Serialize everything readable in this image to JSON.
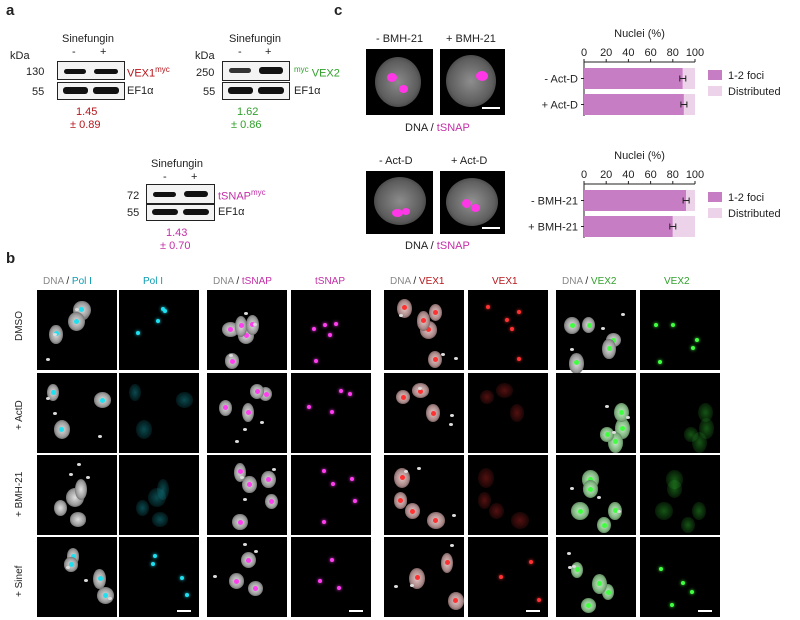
{
  "panels": {
    "a": "a",
    "b": "b",
    "c": "c"
  },
  "panel_a": {
    "kda": "kDa",
    "treatment": "Sinefungin",
    "minus": "-",
    "plus": "+",
    "loading": "EF1α",
    "mw55": "55",
    "blot1": {
      "mw": "130",
      "target": "VEX1",
      "tag": "myc",
      "ratio": "1.45",
      "sd": "± 0.89"
    },
    "blot2": {
      "mw": "250",
      "target": "VEX2",
      "tag": "myc",
      "ratio": "1.62",
      "sd": "± 0.86"
    },
    "blot3": {
      "mw": "72",
      "target": "tSNAP",
      "tag": "myc",
      "ratio": "1.43",
      "sd": "± 0.70"
    }
  },
  "panel_b": {
    "columns": [
      {
        "pre": "DNA",
        "sep": " /",
        "post": "Pol I"
      },
      {
        "post": "Pol I"
      },
      {
        "pre": "DNA",
        "sep": " /",
        "post": "tSNAP"
      },
      {
        "post": "tSNAP"
      },
      {
        "pre": "DNA",
        "sep": " /",
        "post": "VEX1"
      },
      {
        "post": "VEX1"
      },
      {
        "pre": "DNA",
        "sep": " /",
        "post": "VEX2"
      },
      {
        "post": "VEX2"
      }
    ],
    "rows": [
      "DMSO",
      "+ ActD",
      "+ BMH-21",
      "+ Sinef"
    ]
  },
  "panel_c": {
    "top_images": [
      "- BMH-21",
      "+ BMH-21"
    ],
    "bottom_images": [
      "- Act-D",
      "+ Act-D"
    ],
    "caption_dna": "DNA",
    "caption_sep": " / ",
    "caption_tsnap": "tSNAP",
    "colors": {
      "foci": "#c77dc3",
      "distributed": "#ecd3ea"
    }
  },
  "chart_data": [
    {
      "type": "bar",
      "orientation": "horizontal",
      "stacked": true,
      "title": "Nuclei (%)",
      "categories": [
        "- Act-D",
        "+ Act-D"
      ],
      "series": [
        {
          "name": "1-2 foci",
          "values": [
            89,
            90
          ]
        },
        {
          "name": "Distributed",
          "values": [
            11,
            10
          ]
        }
      ],
      "ticks": [
        0,
        20,
        40,
        60,
        80,
        100
      ],
      "xlim": [
        0,
        100
      ],
      "legend": "right"
    },
    {
      "type": "bar",
      "orientation": "horizontal",
      "stacked": true,
      "title": "Nuclei (%)",
      "categories": [
        "- BMH-21",
        "+ BMH-21"
      ],
      "series": [
        {
          "name": "1-2 foci",
          "values": [
            92,
            80
          ]
        },
        {
          "name": "Distributed",
          "values": [
            8,
            20
          ]
        }
      ],
      "ticks": [
        0,
        20,
        40,
        60,
        80,
        100
      ],
      "xlim": [
        0,
        100
      ],
      "legend": "right"
    }
  ]
}
